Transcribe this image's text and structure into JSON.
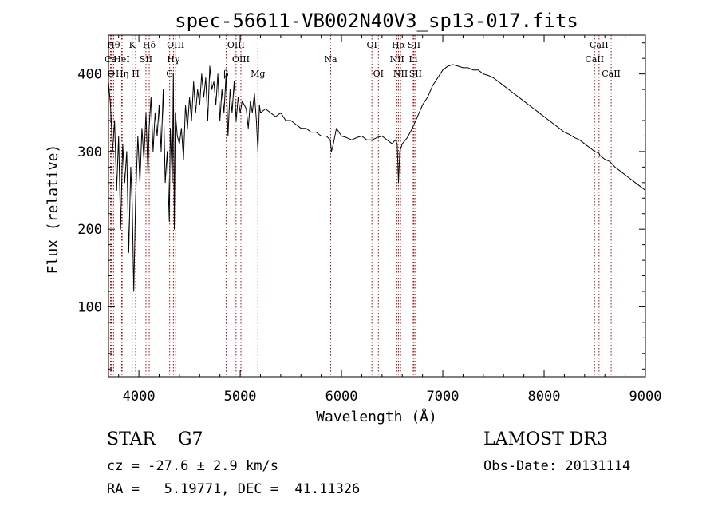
{
  "chart_data": {
    "type": "line",
    "title": "spec-56611-VB002N40V3_sp13-017.fits",
    "xlabel": "Wavelength (Å)",
    "ylabel": "Flux (relative)",
    "xlim": [
      3700,
      9000
    ],
    "ylim": [
      10,
      450
    ],
    "xticks": [
      4000,
      5000,
      6000,
      7000,
      8000,
      9000
    ],
    "yticks": [
      100,
      200,
      300,
      400
    ],
    "series": [
      {
        "name": "flux",
        "x": [
          3700,
          3720,
          3740,
          3760,
          3780,
          3800,
          3820,
          3840,
          3860,
          3880,
          3900,
          3920,
          3935,
          3950,
          3968,
          3990,
          4010,
          4030,
          4050,
          4070,
          4090,
          4101,
          4120,
          4140,
          4160,
          4180,
          4200,
          4220,
          4240,
          4260,
          4280,
          4300,
          4310,
          4330,
          4340,
          4350,
          4360,
          4380,
          4400,
          4420,
          4440,
          4460,
          4480,
          4500,
          4520,
          4540,
          4560,
          4580,
          4600,
          4620,
          4640,
          4660,
          4680,
          4700,
          4720,
          4740,
          4760,
          4780,
          4800,
          4820,
          4840,
          4861,
          4880,
          4900,
          4920,
          4940,
          4960,
          4980,
          5000,
          5020,
          5040,
          5060,
          5080,
          5100,
          5120,
          5140,
          5160,
          5175,
          5190,
          5200,
          5250,
          5300,
          5350,
          5400,
          5450,
          5500,
          5550,
          5600,
          5650,
          5700,
          5750,
          5800,
          5850,
          5890,
          5900,
          5920,
          5950,
          6000,
          6050,
          6100,
          6150,
          6200,
          6250,
          6300,
          6350,
          6400,
          6450,
          6500,
          6530,
          6550,
          6563,
          6575,
          6600,
          6650,
          6700,
          6750,
          6800,
          6850,
          6900,
          6950,
          7000,
          7050,
          7100,
          7150,
          7200,
          7250,
          7300,
          7350,
          7400,
          7450,
          7500,
          7550,
          7600,
          7650,
          7700,
          7750,
          7800,
          7850,
          7900,
          7950,
          8000,
          8050,
          8100,
          8150,
          8200,
          8250,
          8300,
          8350,
          8400,
          8450,
          8500,
          8542,
          8550,
          8600,
          8650,
          8700,
          8750,
          8800,
          8850,
          8900,
          8950,
          9000
        ],
        "values": [
          390,
          360,
          300,
          340,
          250,
          320,
          200,
          310,
          260,
          300,
          170,
          280,
          230,
          120,
          240,
          320,
          260,
          330,
          290,
          350,
          270,
          330,
          370,
          300,
          350,
          320,
          360,
          300,
          380,
          260,
          300,
          210,
          330,
          260,
          400,
          200,
          350,
          320,
          310,
          330,
          290,
          360,
          330,
          370,
          340,
          390,
          350,
          380,
          360,
          400,
          370,
          395,
          340,
          410,
          380,
          390,
          360,
          400,
          340,
          380,
          350,
          400,
          320,
          380,
          350,
          390,
          340,
          370,
          350,
          365,
          360,
          355,
          330,
          365,
          350,
          375,
          340,
          300,
          360,
          350,
          355,
          350,
          345,
          350,
          340,
          340,
          335,
          330,
          330,
          325,
          325,
          320,
          320,
          315,
          300,
          310,
          330,
          320,
          318,
          315,
          318,
          320,
          315,
          315,
          318,
          320,
          315,
          310,
          315,
          310,
          260,
          300,
          310,
          318,
          330,
          345,
          360,
          370,
          385,
          395,
          405,
          410,
          412,
          410,
          408,
          408,
          405,
          405,
          400,
          398,
          395,
          390,
          385,
          380,
          375,
          370,
          365,
          360,
          355,
          350,
          345,
          340,
          335,
          330,
          325,
          322,
          318,
          315,
          310,
          305,
          300,
          298,
          295,
          290,
          287,
          280,
          275,
          270,
          265,
          260,
          255,
          250
        ]
      }
    ],
    "line_markers": [
      {
        "label": "Ca",
        "x": 3720,
        "row": 1
      },
      {
        "label": "O",
        "x": 3727,
        "row": 2
      },
      {
        "label": "Hθ",
        "x": 3750,
        "row": 0
      },
      {
        "label": "HeI",
        "x": 3830,
        "row": 1
      },
      {
        "label": "Hη",
        "x": 3835,
        "row": 2
      },
      {
        "label": "K",
        "x": 3934,
        "row": 0
      },
      {
        "label": "H",
        "x": 3968,
        "row": 2
      },
      {
        "label": "SII",
        "x": 4070,
        "row": 1
      },
      {
        "label": "Hδ",
        "x": 4102,
        "row": 0
      },
      {
        "label": "OIII",
        "x": 4363,
        "row": 0
      },
      {
        "label": "Hγ",
        "x": 4341,
        "row": 1
      },
      {
        "label": "G",
        "x": 4304,
        "row": 2
      },
      {
        "label": "OIII",
        "x": 4959,
        "row": 0
      },
      {
        "label": "OIII",
        "x": 5007,
        "row": 1
      },
      {
        "label": "β",
        "x": 4861,
        "row": 2
      },
      {
        "label": "Mg",
        "x": 5175,
        "row": 2
      },
      {
        "label": "Na",
        "x": 5893,
        "row": 1
      },
      {
        "label": "OI",
        "x": 6300,
        "row": 0
      },
      {
        "label": "OI",
        "x": 6364,
        "row": 2
      },
      {
        "label": "Hα",
        "x": 6563,
        "row": 0
      },
      {
        "label": "NII",
        "x": 6548,
        "row": 1
      },
      {
        "label": "NII",
        "x": 6583,
        "row": 2
      },
      {
        "label": "SII",
        "x": 6716,
        "row": 0
      },
      {
        "label": "Li",
        "x": 6708,
        "row": 1
      },
      {
        "label": "SII",
        "x": 6731,
        "row": 2
      },
      {
        "label": "CaII",
        "x": 8542,
        "row": 0
      },
      {
        "label": "CaII",
        "x": 8498,
        "row": 1
      },
      {
        "label": "CaII",
        "x": 8662,
        "row": 2
      }
    ],
    "marker_color": "#c00000"
  },
  "info": {
    "star_type": "STAR    G7",
    "survey": "LAMOST DR3",
    "cz": "cz = -27.6 ± 2.9 km/s",
    "obs_date": "Obs-Date: 20131114",
    "radec": "RA =   5.19771, DEC =  41.11326"
  }
}
